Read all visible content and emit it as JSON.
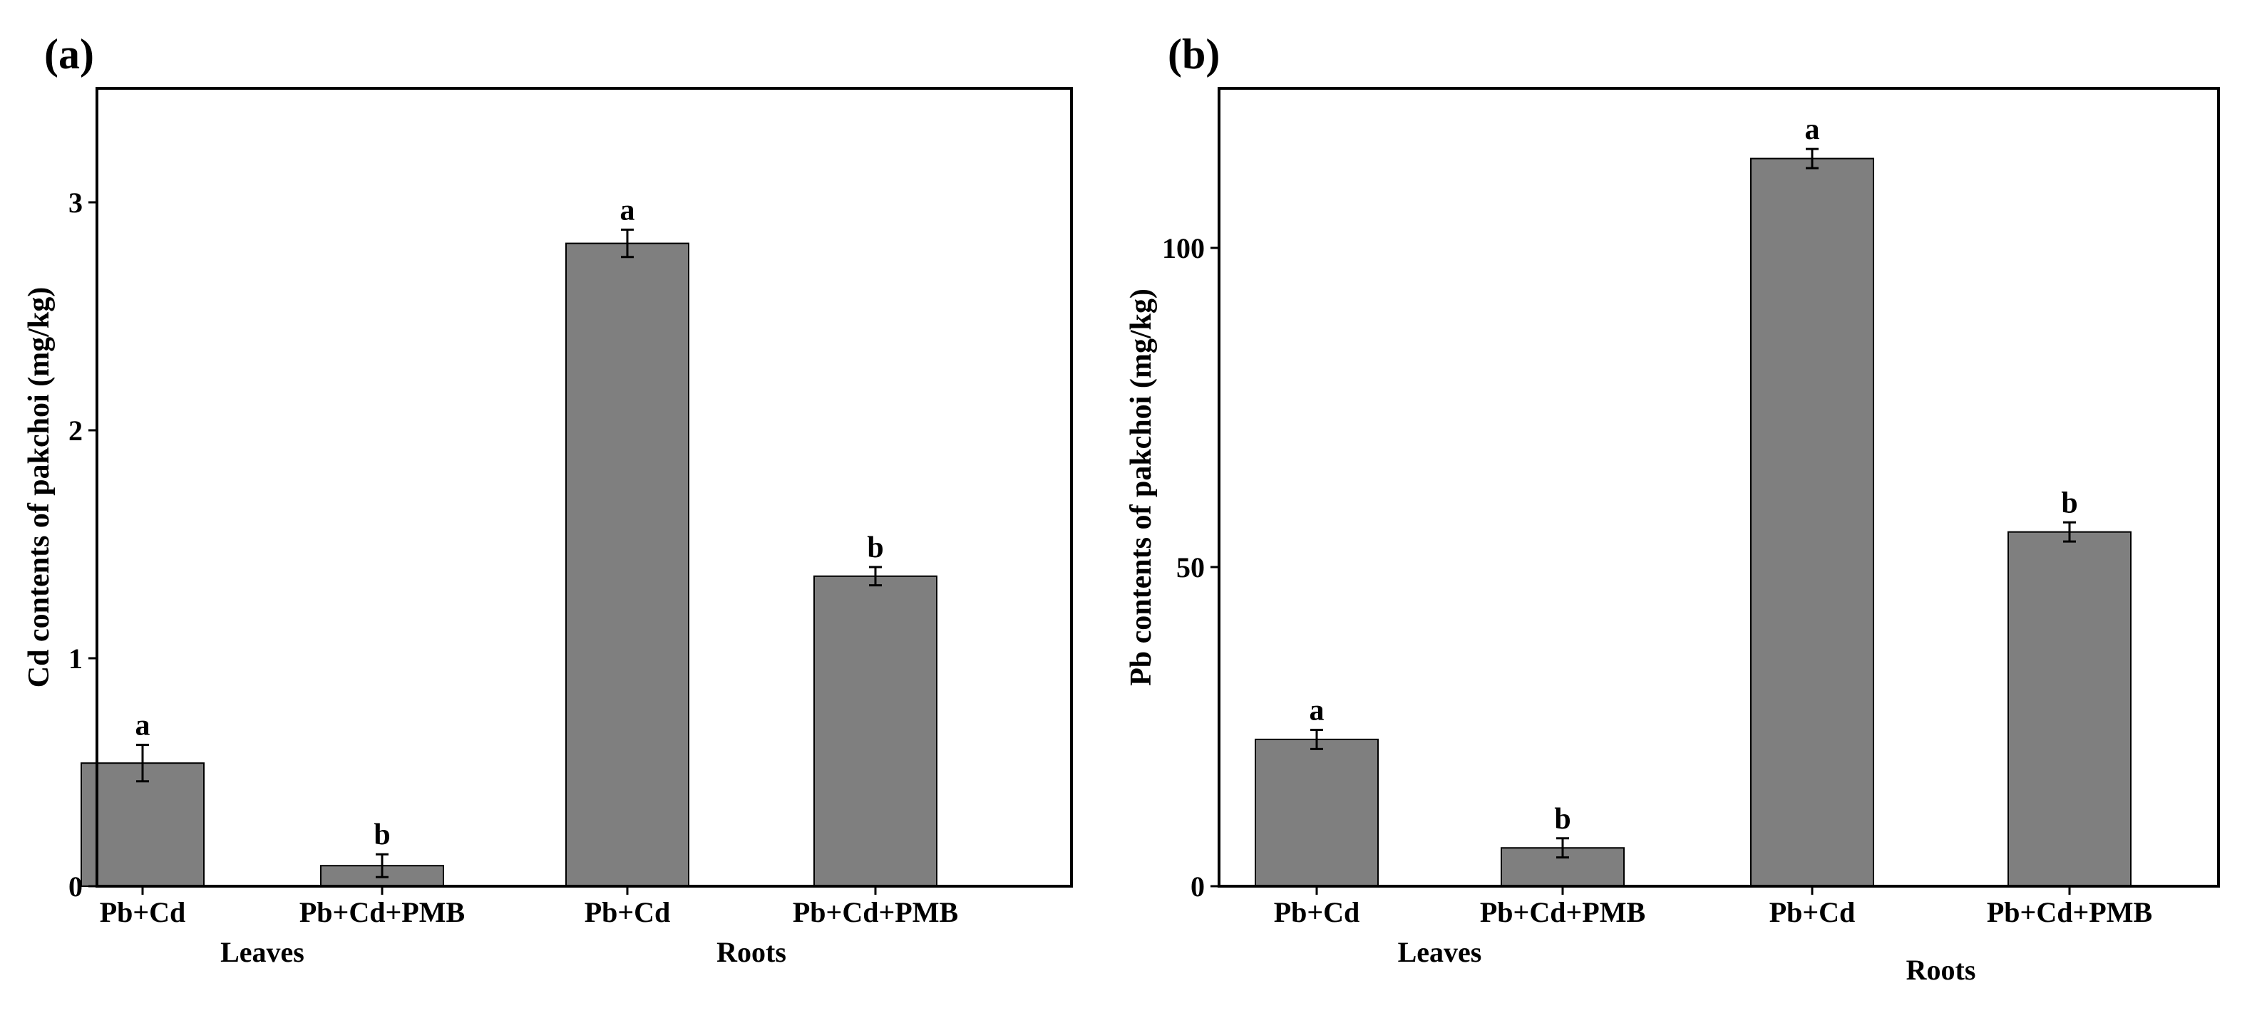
{
  "figure": {
    "panels": [
      "(a)",
      "(b)"
    ]
  },
  "chart_data": [
    {
      "panel_label": "(a)",
      "type": "bar",
      "title": "",
      "xlabel": "",
      "ylabel": "Cd contents of pakchoi (mg/kg)",
      "ylim": [
        0,
        3.5
      ],
      "yticks": [
        0,
        1,
        2,
        3
      ],
      "ytick_labels": [
        "0",
        "1",
        "2",
        "3"
      ],
      "grid": false,
      "legend": "none",
      "categories": [
        "Pb+Cd",
        "Pb+Cd+PMB",
        "Pb+Cd",
        "Pb+Cd+PMB"
      ],
      "groups": [
        {
          "name": "Leaves",
          "category_indices": [
            0,
            1
          ]
        },
        {
          "name": "Roots",
          "category_indices": [
            2,
            3
          ]
        }
      ],
      "values": [
        0.54,
        0.09,
        2.82,
        1.36
      ],
      "errors": [
        0.08,
        0.05,
        0.06,
        0.04
      ],
      "significance": [
        "a",
        "b",
        "a",
        "b"
      ],
      "bar_color": "#7f7f7f"
    },
    {
      "panel_label": "(b)",
      "type": "bar",
      "title": "",
      "xlabel": "",
      "ylabel": "Pb contents of pakchoi (mg/kg)",
      "ylim": [
        0,
        125
      ],
      "yticks": [
        0,
        50,
        100
      ],
      "ytick_labels": [
        "0",
        "50",
        "100"
      ],
      "grid": false,
      "legend": "none",
      "categories": [
        "Pb+Cd",
        "Pb+Cd+PMB",
        "Pb+Cd",
        "Pb+Cd+PMB"
      ],
      "groups": [
        {
          "name": "Leaves",
          "category_indices": [
            0,
            1
          ]
        },
        {
          "name": "Roots",
          "category_indices": [
            2,
            3
          ]
        }
      ],
      "values": [
        23,
        6,
        114,
        55.5
      ],
      "errors": [
        1.5,
        1.5,
        1.5,
        1.5
      ],
      "significance": [
        "a",
        "b",
        "a",
        "b"
      ],
      "bar_color": "#7f7f7f"
    }
  ]
}
